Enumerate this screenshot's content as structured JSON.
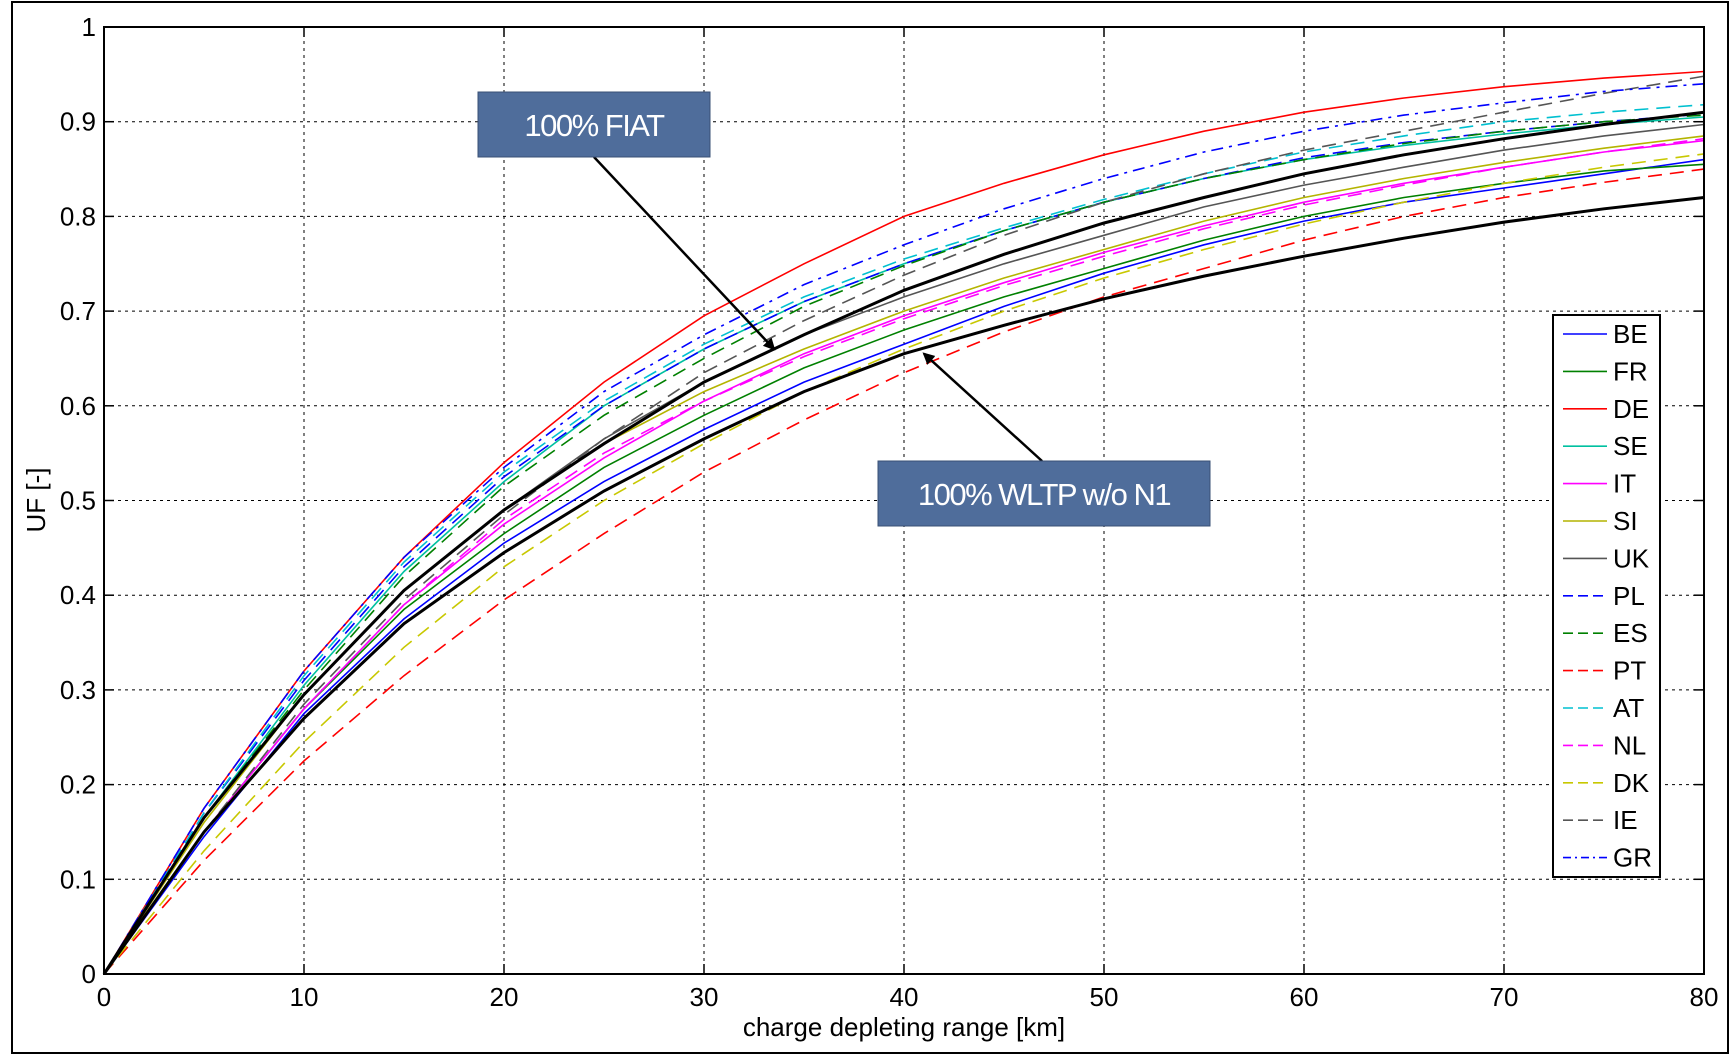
{
  "chart_data": {
    "type": "line",
    "xlabel": "charge depleting range [km]",
    "ylabel": "UF [-]",
    "xlim": [
      0,
      80
    ],
    "ylim": [
      0,
      1
    ],
    "x_ticks": [
      0,
      10,
      20,
      30,
      40,
      50,
      60,
      70,
      80
    ],
    "y_ticks": [
      0,
      0.1,
      0.2,
      0.3,
      0.4,
      0.5,
      0.6,
      0.7,
      0.8,
      0.9,
      1
    ],
    "grid": true,
    "legend_position": "right",
    "x": [
      0,
      5,
      10,
      15,
      20,
      25,
      30,
      35,
      40,
      45,
      50,
      55,
      60,
      65,
      70,
      75,
      80
    ],
    "series": [
      {
        "name": "BE",
        "color": "#0000ff",
        "dash": "solid",
        "values": [
          0,
          0.145,
          0.275,
          0.375,
          0.455,
          0.52,
          0.575,
          0.625,
          0.665,
          0.705,
          0.74,
          0.77,
          0.795,
          0.815,
          0.83,
          0.845,
          0.86
        ]
      },
      {
        "name": "FR",
        "color": "#008000",
        "dash": "solid",
        "values": [
          0,
          0.15,
          0.28,
          0.385,
          0.465,
          0.535,
          0.59,
          0.64,
          0.68,
          0.715,
          0.745,
          0.775,
          0.8,
          0.82,
          0.835,
          0.848,
          0.855
        ]
      },
      {
        "name": "DE",
        "color": "#ff0000",
        "dash": "solid",
        "values": [
          0,
          0.175,
          0.32,
          0.44,
          0.54,
          0.625,
          0.695,
          0.75,
          0.8,
          0.835,
          0.865,
          0.89,
          0.91,
          0.925,
          0.937,
          0.946,
          0.953
        ]
      },
      {
        "name": "SE",
        "color": "#00c0a0",
        "dash": "solid",
        "values": [
          0,
          0.165,
          0.305,
          0.425,
          0.52,
          0.6,
          0.66,
          0.71,
          0.75,
          0.785,
          0.815,
          0.84,
          0.86,
          0.875,
          0.887,
          0.897,
          0.905
        ]
      },
      {
        "name": "IT",
        "color": "#ff00ff",
        "dash": "solid",
        "values": [
          0,
          0.15,
          0.28,
          0.39,
          0.475,
          0.545,
          0.605,
          0.655,
          0.695,
          0.73,
          0.762,
          0.79,
          0.815,
          0.835,
          0.852,
          0.868,
          0.88
        ]
      },
      {
        "name": "SI",
        "color": "#b4b400",
        "dash": "solid",
        "values": [
          0,
          0.16,
          0.295,
          0.405,
          0.49,
          0.56,
          0.615,
          0.66,
          0.7,
          0.735,
          0.765,
          0.795,
          0.82,
          0.84,
          0.857,
          0.872,
          0.885
        ]
      },
      {
        "name": "UK",
        "color": "#555555",
        "dash": "solid",
        "values": [
          0,
          0.165,
          0.295,
          0.405,
          0.49,
          0.565,
          0.625,
          0.675,
          0.715,
          0.75,
          0.78,
          0.81,
          0.833,
          0.852,
          0.87,
          0.885,
          0.897
        ]
      },
      {
        "name": "PL",
        "color": "#0000ff",
        "dash": "dash",
        "values": [
          0,
          0.17,
          0.31,
          0.43,
          0.525,
          0.6,
          0.66,
          0.71,
          0.75,
          0.785,
          0.815,
          0.84,
          0.862,
          0.878,
          0.89,
          0.9,
          0.908
        ]
      },
      {
        "name": "ES",
        "color": "#008000",
        "dash": "dash",
        "values": [
          0,
          0.165,
          0.3,
          0.42,
          0.515,
          0.59,
          0.65,
          0.705,
          0.748,
          0.785,
          0.815,
          0.84,
          0.86,
          0.877,
          0.89,
          0.9,
          0.907
        ]
      },
      {
        "name": "PT",
        "color": "#ff0000",
        "dash": "dash",
        "values": [
          0,
          0.12,
          0.225,
          0.315,
          0.395,
          0.465,
          0.53,
          0.585,
          0.635,
          0.678,
          0.715,
          0.745,
          0.775,
          0.8,
          0.82,
          0.836,
          0.85
        ]
      },
      {
        "name": "AT",
        "color": "#00c0d0",
        "dash": "dash",
        "values": [
          0,
          0.17,
          0.315,
          0.435,
          0.53,
          0.605,
          0.665,
          0.715,
          0.755,
          0.788,
          0.818,
          0.845,
          0.868,
          0.885,
          0.9,
          0.91,
          0.918
        ]
      },
      {
        "name": "NL",
        "color": "#ff00ff",
        "dash": "dash",
        "values": [
          0,
          0.15,
          0.28,
          0.39,
          0.48,
          0.55,
          0.605,
          0.652,
          0.692,
          0.727,
          0.758,
          0.787,
          0.812,
          0.833,
          0.852,
          0.868,
          0.882
        ]
      },
      {
        "name": "DK",
        "color": "#c8c800",
        "dash": "dash",
        "values": [
          0,
          0.13,
          0.245,
          0.345,
          0.43,
          0.5,
          0.56,
          0.615,
          0.66,
          0.7,
          0.735,
          0.765,
          0.792,
          0.815,
          0.835,
          0.852,
          0.866
        ]
      },
      {
        "name": "IE",
        "color": "#555555",
        "dash": "dash",
        "values": [
          0,
          0.15,
          0.285,
          0.395,
          0.485,
          0.565,
          0.635,
          0.69,
          0.738,
          0.78,
          0.815,
          0.845,
          0.87,
          0.89,
          0.91,
          0.93,
          0.948
        ]
      },
      {
        "name": "GR",
        "color": "#0000ff",
        "dash": "dashdot",
        "values": [
          0,
          0.175,
          0.32,
          0.44,
          0.535,
          0.615,
          0.675,
          0.728,
          0.77,
          0.808,
          0.84,
          0.868,
          0.89,
          0.907,
          0.92,
          0.932,
          0.94
        ]
      }
    ],
    "reference_series": [
      {
        "label": "100% FIAT",
        "color": "#000000",
        "values": [
          0,
          0.165,
          0.295,
          0.405,
          0.49,
          0.56,
          0.625,
          0.675,
          0.722,
          0.76,
          0.793,
          0.82,
          0.845,
          0.865,
          0.882,
          0.897,
          0.91
        ]
      },
      {
        "label": "100% WLTP w/o N1",
        "color": "#000000",
        "values": [
          0,
          0.15,
          0.27,
          0.37,
          0.445,
          0.51,
          0.565,
          0.615,
          0.655,
          0.685,
          0.713,
          0.737,
          0.758,
          0.777,
          0.794,
          0.808,
          0.82
        ]
      }
    ],
    "annotations": [
      {
        "text": "100% FIAT",
        "fill": "#4f6d9b",
        "arrow_to": [
          33.5,
          0.66
        ]
      },
      {
        "text": "100% WLTP w/o N1",
        "fill": "#4f6d9b",
        "arrow_to": [
          41,
          0.655
        ]
      }
    ]
  }
}
